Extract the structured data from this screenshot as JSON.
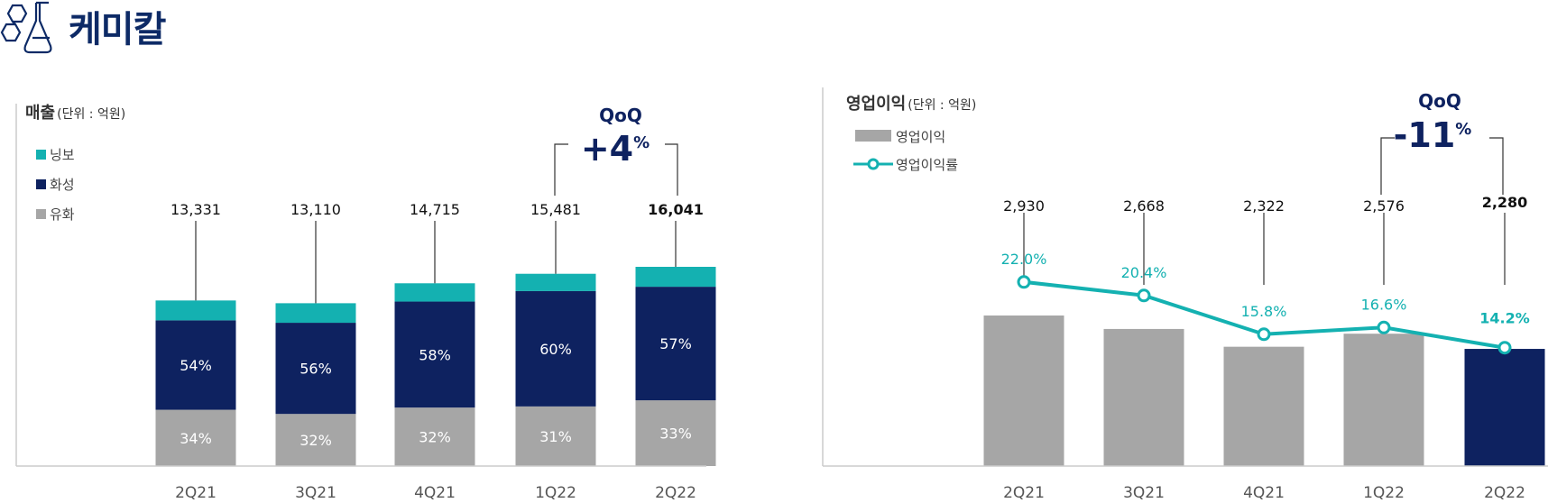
{
  "header": {
    "title": "케미칼",
    "logo_icon": "chemistry-flask-icon"
  },
  "colors": {
    "navy": "#0e2260",
    "teal": "#14b1b1",
    "gray": "#a6a6a6",
    "text": "#222222",
    "line_gray": "#333333"
  },
  "chart_data": [
    {
      "type": "bar",
      "stacked": true,
      "title": "매출",
      "unit": "(단위 : 억원)",
      "categories": [
        "2Q21",
        "3Q21",
        "4Q21",
        "1Q22",
        "2Q22"
      ],
      "totals": [
        "13,331",
        "13,110",
        "14,715",
        "15,481",
        "16,041"
      ],
      "total_values": [
        13331,
        13110,
        14715,
        15481,
        16041
      ],
      "series": [
        {
          "name": "유화",
          "color": "#a6a6a6",
          "share": [
            34,
            32,
            32,
            31,
            33
          ],
          "labels": [
            "34%",
            "32%",
            "32%",
            "31%",
            "33%"
          ]
        },
        {
          "name": "화성",
          "color": "#0e2260",
          "share": [
            54,
            56,
            58,
            60,
            57
          ],
          "labels": [
            "54%",
            "56%",
            "58%",
            "60%",
            "57%"
          ]
        },
        {
          "name": "닝보",
          "color": "#14b1b1",
          "share": [
            12,
            12,
            10,
            9,
            10
          ],
          "labels": []
        }
      ],
      "legend": [
        "닝보",
        "화성",
        "유화"
      ],
      "qoq": {
        "label": "QoQ",
        "value": "+4",
        "unit": "%"
      },
      "ylim": [
        0,
        18000
      ]
    },
    {
      "type": "bar+line",
      "title": "영업이익",
      "unit": "(단위 : 억원)",
      "categories": [
        "2Q21",
        "3Q21",
        "4Q21",
        "1Q22",
        "2Q22"
      ],
      "bar_series": {
        "name": "영업이익",
        "values": [
          2930,
          2668,
          2322,
          2576,
          2280
        ],
        "labels": [
          "2,930",
          "2,668",
          "2,322",
          "2,576",
          "2,280"
        ]
      },
      "line_series": {
        "name": "영업이익률",
        "values": [
          22.0,
          20.4,
          15.8,
          16.6,
          14.2
        ],
        "labels": [
          "22.0%",
          "20.4%",
          "15.8%",
          "16.6%",
          "14.2%"
        ]
      },
      "legend": [
        "영업이익",
        "영업이익률"
      ],
      "qoq": {
        "label": "QoQ",
        "value": "-11",
        "unit": "%"
      },
      "ylim": [
        0,
        4000
      ]
    }
  ]
}
